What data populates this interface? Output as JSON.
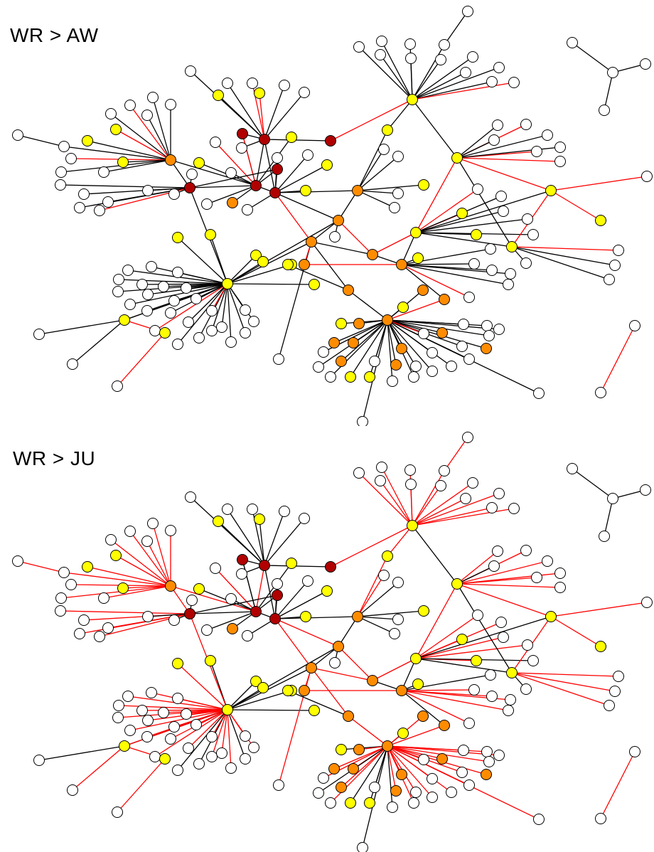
{
  "panels": [
    {
      "title": "WR > AW"
    },
    {
      "title": "WR > JU"
    }
  ],
  "colors": {
    "edge_black": "#000000",
    "edge_red": "#ff0000",
    "node_white": "#ffffff",
    "node_yellow": "#ffff00",
    "node_orange": "#ff8c00",
    "node_darkred": "#b00000",
    "node_outline": "#000000"
  }
}
